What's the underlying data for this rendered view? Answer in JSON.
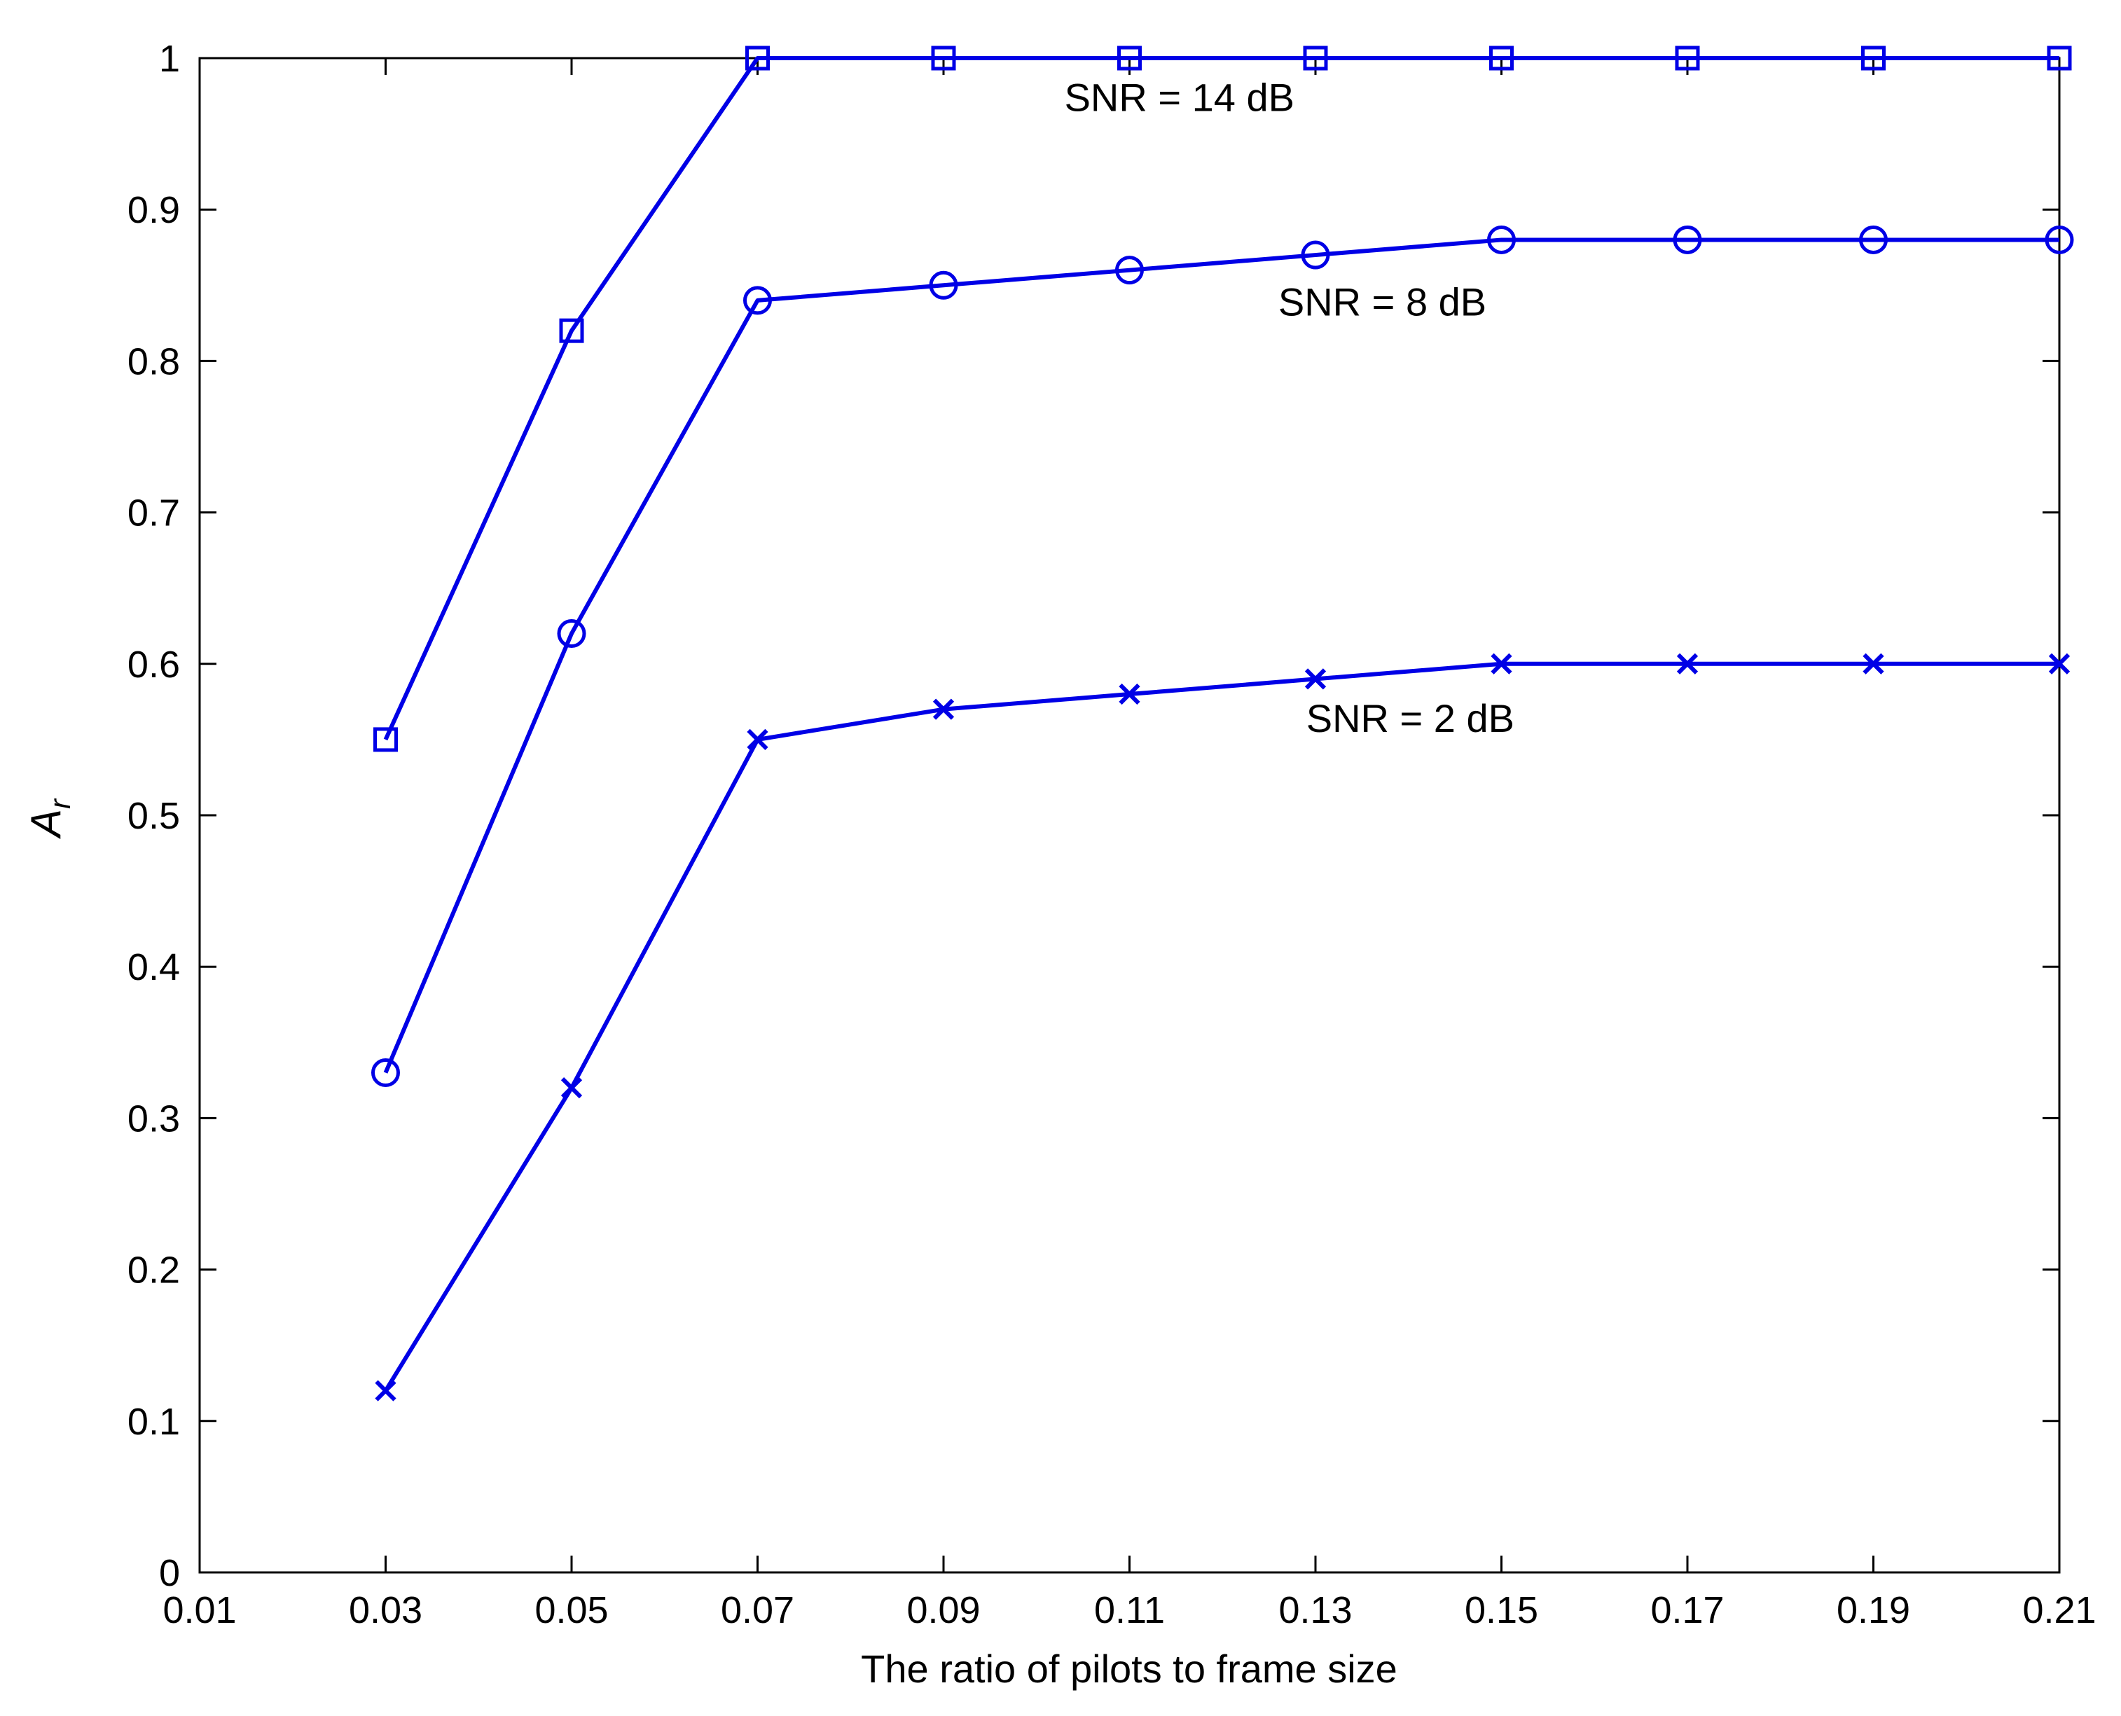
{
  "chart_data": {
    "type": "line",
    "title": "",
    "xlabel": "The ratio of pilots to frame size",
    "ylabel": {
      "main": "A",
      "sub": "r"
    },
    "xlim": [
      0.01,
      0.21
    ],
    "ylim": [
      0,
      1
    ],
    "xticks": [
      "0.01",
      "0.03",
      "0.05",
      "0.07",
      "0.09",
      "0.11",
      "0.13",
      "0.15",
      "0.17",
      "0.19",
      "0.21"
    ],
    "yticks": [
      "0",
      "0.1",
      "0.2",
      "0.3",
      "0.4",
      "0.5",
      "0.6",
      "0.7",
      "0.8",
      "0.9",
      "1"
    ],
    "grid": false,
    "legend": "none",
    "color": "#0000e6",
    "x": [
      0.03,
      0.05,
      0.07,
      0.09,
      0.11,
      0.13,
      0.15,
      0.17,
      0.19,
      0.21
    ],
    "series": [
      {
        "marker": "square",
        "values": [
          0.55,
          0.82,
          1.0,
          1.0,
          1.0,
          1.0,
          1.0,
          1.0,
          1.0,
          1.0
        ]
      },
      {
        "marker": "circle",
        "values": [
          0.33,
          0.62,
          0.84,
          0.85,
          0.86,
          0.87,
          0.88,
          0.88,
          0.88,
          0.88
        ]
      },
      {
        "marker": "x",
        "values": [
          0.12,
          0.32,
          0.55,
          0.57,
          0.58,
          0.59,
          0.6,
          0.6,
          0.6,
          0.6
        ]
      }
    ],
    "annotations": [
      {
        "text": "SNR = 14 dB",
        "x": 0.103,
        "y": 0.965
      },
      {
        "text": "SNR = 8 dB",
        "x": 0.126,
        "y": 0.83
      },
      {
        "text": "SNR = 2 dB",
        "x": 0.129,
        "y": 0.555
      }
    ]
  }
}
